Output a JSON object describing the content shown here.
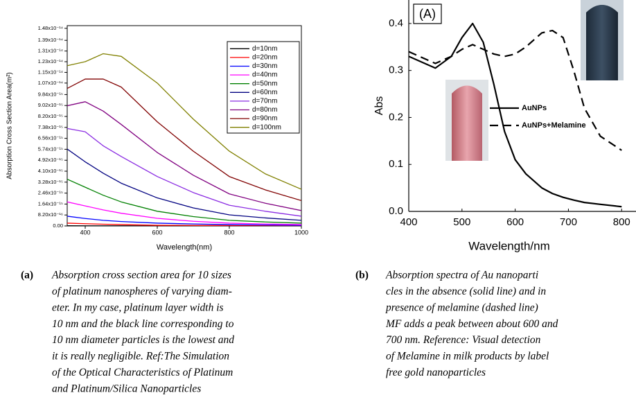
{
  "chart_data": [
    {
      "type": "line",
      "xlabel": "Wavelength(nm)",
      "ylabel": "Absorption Cross Section Area(m²)",
      "x": [
        350,
        400,
        450,
        500,
        600,
        700,
        800,
        900,
        1000
      ],
      "xlim": [
        350,
        1000
      ],
      "xticks": [
        400,
        600,
        800,
        1000
      ],
      "ylim": [
        0,
        1.5e-14
      ],
      "yticks": [
        {
          "value": 0,
          "label": "0.00"
        },
        {
          "value": 8.2e-16,
          "label": "8.20x10⁻¹⁶"
        },
        {
          "value": 1.64e-15,
          "label": "1.64x10⁻¹⁵"
        },
        {
          "value": 2.46e-15,
          "label": "2.46x10⁻¹⁵"
        },
        {
          "value": 3.28e-15,
          "label": "3.28x10⁻¹⁵"
        },
        {
          "value": 4.1e-15,
          "label": "4.10x10⁻¹⁵"
        },
        {
          "value": 4.92e-15,
          "label": "4.92x10⁻¹⁵"
        },
        {
          "value": 5.74e-15,
          "label": "5.74x10⁻¹⁵"
        },
        {
          "value": 6.56e-15,
          "label": "6.56x10⁻¹⁵"
        },
        {
          "value": 7.38e-15,
          "label": "7.38x10⁻¹⁵"
        },
        {
          "value": 8.2e-15,
          "label": "8.20x10⁻¹⁵"
        },
        {
          "value": 9.02e-15,
          "label": "9.02x10⁻¹⁵"
        },
        {
          "value": 9.84e-15,
          "label": "9.84x10⁻¹⁵"
        },
        {
          "value": 1.07e-14,
          "label": "1.07x10⁻¹⁴"
        },
        {
          "value": 1.15e-14,
          "label": "1.15x10⁻¹⁴"
        },
        {
          "value": 1.23e-14,
          "label": "1.23x10⁻¹⁴"
        },
        {
          "value": 1.31e-14,
          "label": "1.31x10⁻¹⁴"
        },
        {
          "value": 1.39e-14,
          "label": "1.39x10⁻¹⁴"
        },
        {
          "value": 1.48e-14,
          "label": "1.48x10⁻¹⁴"
        }
      ],
      "legend": "upper right",
      "series": [
        {
          "name": "d=10nm",
          "color": "#000000",
          "values": [
            1.5e-17,
            1.4e-17,
            1.2e-17,
            1e-17,
            8e-18,
            6e-18,
            5e-18,
            4e-18,
            3e-18
          ]
        },
        {
          "name": "d=20nm",
          "color": "#ff0000",
          "values": [
            2.1e-16,
            1.7e-16,
            1.3e-16,
            1e-16,
            5e-17,
            4e-17,
            3e-17,
            2.5e-17,
            2e-17
          ]
        },
        {
          "name": "d=30nm",
          "color": "#0000ff",
          "values": [
            7.3e-16,
            5.6e-16,
            4.2e-16,
            3.3e-16,
            2.1e-16,
            1.5e-16,
            1e-16,
            7e-17,
            5e-17
          ]
        },
        {
          "name": "d=40nm",
          "color": "#ff00ff",
          "values": [
            1.8e-15,
            1.5e-15,
            1.2e-15,
            9.5e-16,
            5.7e-16,
            3.5e-16,
            2.1e-16,
            1.5e-16,
            1e-16
          ]
        },
        {
          "name": "d=50nm",
          "color": "#008000",
          "values": [
            3.5e-15,
            2.9e-15,
            2.3e-15,
            1.8e-15,
            1.1e-15,
            7e-16,
            4.2e-16,
            3e-16,
            2.1e-16
          ]
        },
        {
          "name": "d=60nm",
          "color": "#000080",
          "values": [
            5.76e-15,
            4.8e-15,
            3.95e-15,
            3.2e-15,
            2.1e-15,
            1.35e-15,
            8.3e-16,
            6e-16,
            4.2e-16
          ]
        },
        {
          "name": "d=70nm",
          "color": "#8a2be2",
          "values": [
            7.3e-15,
            7.05e-15,
            6e-15,
            5.2e-15,
            3.7e-15,
            2.5e-15,
            1.55e-15,
            1.1e-15,
            7.3e-16
          ]
        },
        {
          "name": "d=80nm",
          "color": "#800080",
          "values": [
            9e-15,
            9.3e-15,
            8.6e-15,
            7.6e-15,
            5.5e-15,
            3.8e-15,
            2.4e-15,
            1.7e-15,
            1.15e-15
          ]
        },
        {
          "name": "d=90nm",
          "color": "#800000",
          "values": [
            1.03e-14,
            1.1e-14,
            1.1e-14,
            1.04e-14,
            7.8e-15,
            5.6e-15,
            3.7e-15,
            2.7e-15,
            1.9e-15
          ]
        },
        {
          "name": "d=100nm",
          "color": "#808000",
          "values": [
            1.2e-14,
            1.23e-14,
            1.29e-14,
            1.27e-14,
            1.07e-14,
            8e-15,
            5.6e-15,
            3.9e-15,
            2.75e-15
          ]
        }
      ]
    },
    {
      "type": "line",
      "xlabel": "Wavelength/nm",
      "ylabel": "Abs",
      "annotation": "(A)",
      "x": [
        400,
        450,
        480,
        500,
        520,
        540,
        560,
        580,
        600,
        620,
        650,
        670,
        690,
        710,
        730,
        760,
        800
      ],
      "xlim": [
        400,
        827
      ],
      "xticks": [
        400,
        500,
        600,
        700,
        800
      ],
      "ylim": [
        0,
        0.45
      ],
      "yticks": [
        {
          "value": 0,
          "label": "0.0"
        },
        0.1,
        0.2,
        0.3,
        0.4
      ],
      "legend": "center right",
      "series": [
        {
          "name": "AuNPs",
          "color": "#000000",
          "dashed": false,
          "values": [
            0.33,
            0.305,
            0.33,
            0.37,
            0.4,
            0.36,
            0.27,
            0.17,
            0.11,
            0.08,
            0.05,
            0.038,
            0.03,
            0.024,
            0.019,
            0.015,
            0.01
          ]
        },
        {
          "name": "AuNPs+Melamine",
          "color": "#000000",
          "dashed": true,
          "values": [
            0.34,
            0.315,
            0.33,
            0.345,
            0.355,
            0.345,
            0.335,
            0.33,
            0.335,
            0.35,
            0.38,
            0.385,
            0.37,
            0.3,
            0.22,
            0.16,
            0.13
          ]
        }
      ]
    }
  ],
  "captions": [
    {
      "label": "(a)",
      "lines": [
        "Absorption cross section area for 10 sizes",
        "of platinum nanospheres of varying diam-",
        "eter. In my case, platinum layer width is",
        "10 nm and the black line corresponding to",
        "10 nm diameter particles is the lowest and",
        "it is really negligible. Ref:The Simulation",
        "of the Optical Characteristics of Platinum",
        "and Platinum/Silica Nanoparticles"
      ]
    },
    {
      "label": "(b)",
      "lines": [
        "Absorption spectra of Au nanoparti",
        "cles in the absence (solid line) and in",
        "presence of melamine (dashed line)",
        "MF adds a peak between about 600 and",
        "700 nm. Reference: Visual detection",
        "of Melamine in milk products by label",
        "free gold nanoparticles"
      ]
    }
  ]
}
